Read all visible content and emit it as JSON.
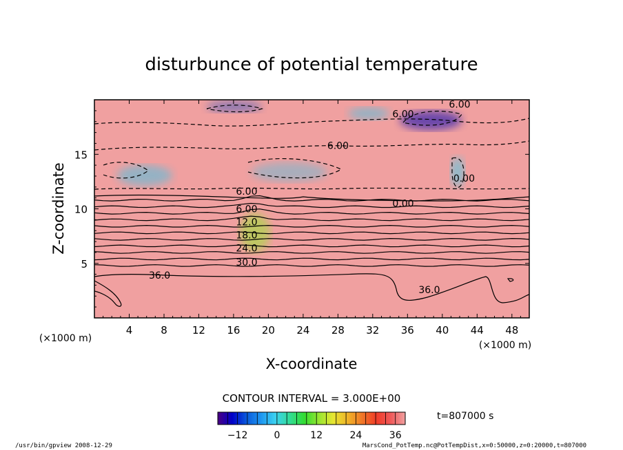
{
  "chart_data": {
    "type": "heatmap",
    "title": "disturbunce of potential temperature",
    "xlabel": "X-coordinate",
    "ylabel": "Z-coordinate",
    "x_unit": "(×1000 m)",
    "z_unit": "(×1000 m)",
    "xlim": [
      0,
      50
    ],
    "ylim": [
      0,
      20
    ],
    "x_ticks": [
      4,
      8,
      12,
      16,
      20,
      24,
      28,
      32,
      36,
      40,
      44,
      48
    ],
    "y_ticks": [
      5,
      10,
      15
    ],
    "contour_interval": "CONTOUR INTERVAL = 3.000E+00",
    "time": "t=807000 s",
    "colorbar": {
      "range": [
        -18,
        39
      ],
      "ticks": [
        -12,
        0,
        12,
        24,
        36
      ],
      "tick_labels": [
        "−12",
        "0",
        "12",
        "24",
        "36"
      ],
      "colors": [
        "#4b0082",
        "#0000c8",
        "#0a5adc",
        "#1e96f0",
        "#3cd2f0",
        "#32dc96",
        "#32dc32",
        "#96e632",
        "#e6e632",
        "#f0b428",
        "#f07828",
        "#f03c28",
        "#f05a5a",
        "#f0a0a0"
      ]
    },
    "profile": {
      "z": [
        0,
        4,
        4.3,
        4.8,
        5.4,
        6.0,
        6.6,
        7.2,
        7.8,
        8.4,
        9.0,
        9.6,
        10.2,
        10.8,
        11.4,
        12.5,
        15,
        17,
        19,
        19.8
      ],
      "theta_disturbance": [
        39,
        38.5,
        36,
        33,
        30,
        27,
        24,
        21,
        18,
        15,
        12,
        9,
        6,
        3,
        0,
        -2,
        -5,
        -5,
        -8,
        -6
      ]
    },
    "contour_labels": [
      {
        "x": 7.5,
        "z": 3.9,
        "text": "36.0"
      },
      {
        "x": 38.5,
        "z": 2.6,
        "text": "36.0"
      },
      {
        "x": 17.5,
        "z": 5.1,
        "text": "30.0"
      },
      {
        "x": 17.5,
        "z": 6.4,
        "text": "24.0"
      },
      {
        "x": 17.5,
        "z": 7.6,
        "text": "18.0"
      },
      {
        "x": 17.5,
        "z": 8.8,
        "text": "12.0"
      },
      {
        "x": 17.5,
        "z": 10.0,
        "text": "6.00"
      },
      {
        "x": 17.5,
        "z": 11.6,
        "text": "6.00"
      },
      {
        "x": 35.5,
        "z": 10.5,
        "text": "0.00"
      },
      {
        "x": 28.0,
        "z": 15.8,
        "text": "6.00"
      },
      {
        "x": 35.5,
        "z": 18.7,
        "text": "6.00"
      },
      {
        "x": 42.0,
        "z": 19.6,
        "text": "6.00"
      },
      {
        "x": 42.5,
        "z": 12.8,
        "text": "0.00"
      }
    ]
  },
  "footer": {
    "left": "/usr/bin/gpview   2008-12-29",
    "right": "MarsCond_PotTemp.nc@PotTempDist,x=0:50000,z=0:20000,t=807000"
  }
}
